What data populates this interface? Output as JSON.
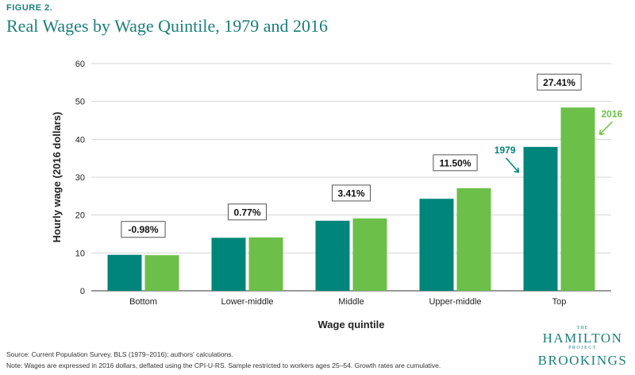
{
  "figure_label": "FIGURE 2.",
  "chart_data": {
    "type": "bar",
    "title": "Real Wages by Wage Quintile, 1979 and 2016",
    "xlabel": "Wage quintile",
    "ylabel": "Hourly wage (2016 dollars)",
    "ylim": [
      0,
      60
    ],
    "yticks": [
      0,
      10,
      20,
      30,
      40,
      50,
      60
    ],
    "grid": true,
    "categories": [
      "Bottom",
      "Lower-middle",
      "Middle",
      "Upper-middle",
      "Top"
    ],
    "series": [
      {
        "name": "1979",
        "color": "#00857a",
        "values": [
          9.5,
          14.0,
          18.5,
          24.3,
          38.0
        ]
      },
      {
        "name": "2016",
        "color": "#6cc04a",
        "values": [
          9.4,
          14.1,
          19.1,
          27.1,
          48.4
        ]
      }
    ],
    "growth_labels": [
      "-0.98%",
      "0.77%",
      "3.41%",
      "11.50%",
      "27.41%"
    ]
  },
  "source": "Source: Current Population Survey, BLS (1979–2016); authors' calculations.",
  "note": "Note: Wages are expressed in 2016 dollars, deflated using the CPI-U-RS. Sample restricted to workers ages 25–54. Growth rates are cumulative.",
  "logo": {
    "the": "THE",
    "hamilton": "HAMILTON",
    "project": "PROJECT",
    "brookings": "BROOKINGS"
  },
  "colors": {
    "accent": "#1a7f7a"
  }
}
